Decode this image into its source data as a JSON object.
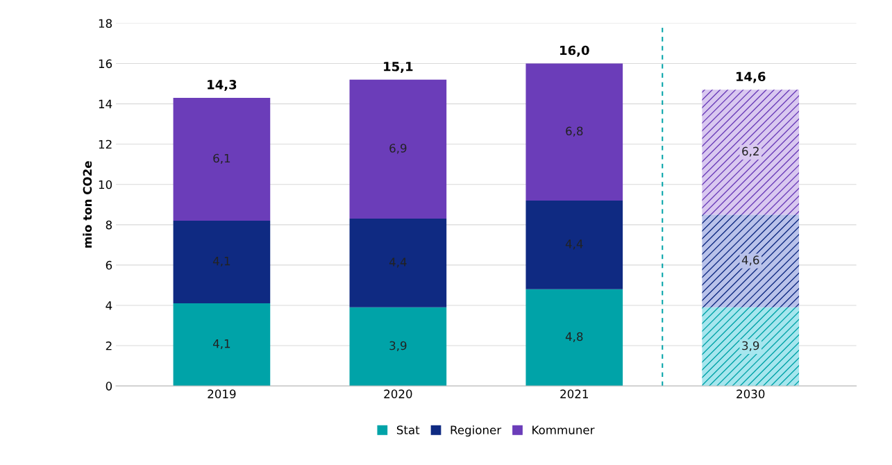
{
  "chart_data": {
    "type": "bar",
    "stacked": true,
    "ylabel": "mio ton CO2e",
    "categories": [
      "2019",
      "2020",
      "2021",
      "2030"
    ],
    "series": [
      {
        "name": "Stat",
        "color": "#00a3a8",
        "colors": [
          "#00a3a8",
          "#00a3a8",
          "#00a3a8",
          "#a6e6ee"
        ],
        "values": [
          4.1,
          3.9,
          4.8,
          3.9
        ],
        "value_labels": [
          "4,1",
          "3,9",
          "4,8",
          "3,9"
        ]
      },
      {
        "name": "Regioner",
        "color": "#0f2a82",
        "colors": [
          "#0f2a82",
          "#0f2a82",
          "#0f2a82",
          "#b9c2ea"
        ],
        "values": [
          4.1,
          4.4,
          4.4,
          4.6
        ],
        "value_labels": [
          "4,1",
          "4,4",
          "4,4",
          "4,6"
        ]
      },
      {
        "name": "Kommuner",
        "color": "#6b3db9",
        "colors": [
          "#6b3db9",
          "#6b3db9",
          "#6b3db9",
          "#d9c8f0"
        ],
        "values": [
          6.1,
          6.9,
          6.8,
          6.2
        ],
        "value_labels": [
          "6,1",
          "6,9",
          "6,8",
          "6,2"
        ]
      }
    ],
    "totals": [
      "14,3",
      "15,1",
      "16,0",
      "14,6"
    ],
    "ylim": [
      0,
      18
    ],
    "yticks": [
      0,
      2,
      4,
      6,
      8,
      10,
      12,
      14,
      16,
      18
    ],
    "grid": "y",
    "legend": "bottom"
  }
}
